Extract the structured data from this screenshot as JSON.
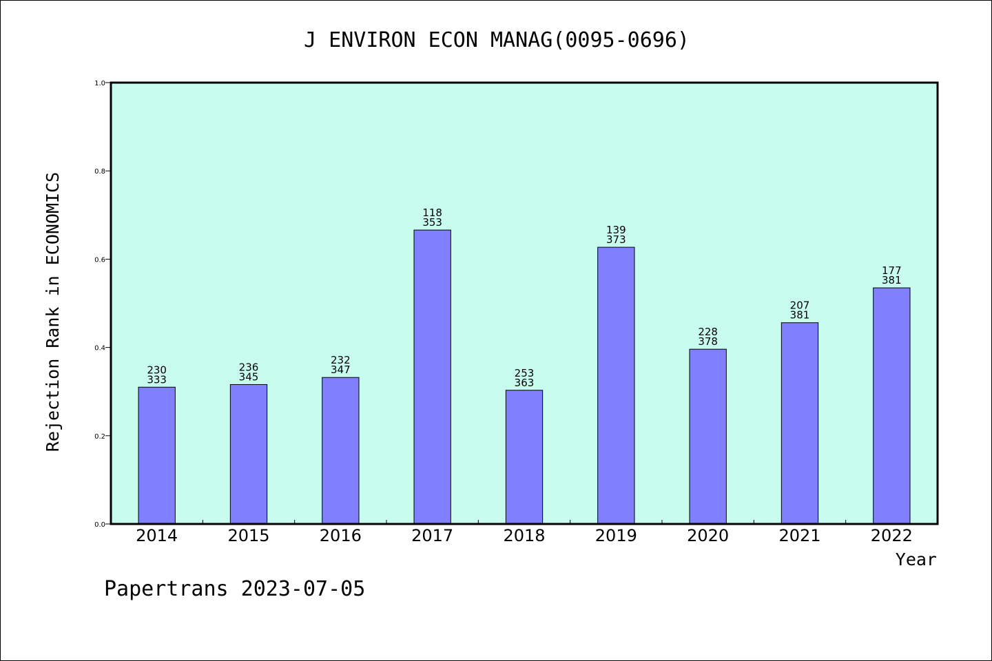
{
  "chart_data": {
    "type": "bar",
    "title": "J ENVIRON ECON MANAG(0095-0696)",
    "xlabel": "Year",
    "ylabel": "Rejection Rank in ECONOMICS",
    "ylim": [
      0,
      1.0
    ],
    "yticks": [
      "0.0",
      "0.2",
      "0.4",
      "0.6",
      "0.8",
      "1.0"
    ],
    "categories": [
      "2014",
      "2015",
      "2016",
      "2017",
      "2018",
      "2019",
      "2020",
      "2021",
      "2022"
    ],
    "values": [
      0.31,
      0.316,
      0.332,
      0.666,
      0.303,
      0.627,
      0.396,
      0.456,
      0.535
    ],
    "labels_top": [
      "230",
      "236",
      "232",
      "118",
      "253",
      "139",
      "228",
      "207",
      "177"
    ],
    "labels_bottom": [
      "333",
      "345",
      "347",
      "353",
      "363",
      "373",
      "378",
      "381",
      "381"
    ],
    "plot_background": "#c8fcef",
    "bar_color": "#8080ff",
    "grid": false
  },
  "footer": {
    "text": "Papertrans 2023-07-05"
  }
}
